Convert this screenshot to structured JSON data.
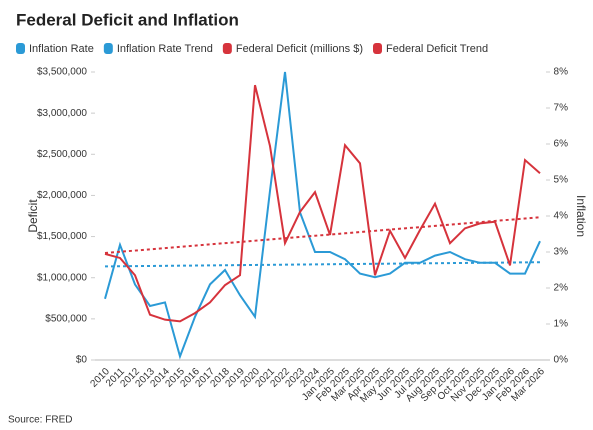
{
  "chart_data": {
    "type": "line",
    "title": "Federal Deficit and Inflation",
    "source": "Source: FRED",
    "ylabel": "Deficit",
    "y2label": "Inflation",
    "categories": [
      "2010",
      "2011",
      "2012",
      "2013",
      "2014",
      "2015",
      "2016",
      "2017",
      "2018",
      "2019",
      "2020",
      "2021",
      "2022",
      "2023",
      "2024",
      "Jan 2025",
      "Feb 2025",
      "Mar 2025",
      "Apr 2025",
      "May 2025",
      "Jun 2025",
      "Jul 2025",
      "Aug 2025",
      "Sep 2025",
      "Oct 2025",
      "Nov 2025",
      "Dec 2025",
      "Jan 2026",
      "Feb 2026",
      "Mar 2026"
    ],
    "series": [
      {
        "name": "Inflation Rate",
        "color": "#2b9ad6",
        "axis": "y2",
        "dashed": false,
        "values": [
          1.7,
          3.2,
          2.1,
          1.5,
          1.6,
          0.1,
          1.2,
          2.1,
          2.5,
          1.8,
          1.2,
          4.7,
          8.0,
          4.1,
          3.0,
          3.0,
          2.8,
          2.4,
          2.3,
          2.4,
          2.7,
          2.7,
          2.9,
          3.0,
          2.8,
          2.7,
          2.7,
          2.4,
          2.4,
          3.3
        ]
      },
      {
        "name": "Inflation Rate Trend",
        "color": "#2b9ad6",
        "axis": "y2",
        "dashed": true,
        "values": [
          2.6,
          2.604,
          2.608,
          2.612,
          2.616,
          2.62,
          2.624,
          2.628,
          2.632,
          2.636,
          2.64,
          2.644,
          2.648,
          2.652,
          2.656,
          2.66,
          2.664,
          2.668,
          2.672,
          2.676,
          2.68,
          2.684,
          2.688,
          2.692,
          2.696,
          2.7,
          2.704,
          2.708,
          2.712,
          2.716
        ]
      },
      {
        "name": "Federal Deficit (millions $)",
        "color": "#d6333c",
        "axis": "y",
        "dashed": false,
        "values": [
          1290000,
          1240000,
          1030000,
          550000,
          490000,
          470000,
          570000,
          700000,
          910000,
          1030000,
          3340000,
          2600000,
          1420000,
          1800000,
          2040000,
          1520000,
          2610000,
          2390000,
          1030000,
          1570000,
          1240000,
          1580000,
          1900000,
          1420000,
          1600000,
          1660000,
          1680000,
          1150000,
          2430000,
          2270000
        ]
      },
      {
        "name": "Federal Deficit Trend",
        "color": "#d6333c",
        "axis": "y",
        "dashed": true,
        "values": [
          1300000,
          1315000,
          1330000,
          1345000,
          1360000,
          1375000,
          1390000,
          1405000,
          1420000,
          1435000,
          1450000,
          1465000,
          1480000,
          1495000,
          1510000,
          1525000,
          1540000,
          1555000,
          1570000,
          1585000,
          1600000,
          1615000,
          1630000,
          1645000,
          1660000,
          1675000,
          1690000,
          1705000,
          1720000,
          1735000
        ]
      }
    ],
    "ylim": [
      0,
      3500000
    ],
    "yticks": [
      {
        "value": 0,
        "label": "$0"
      },
      {
        "value": 500000,
        "label": "$500,000"
      },
      {
        "value": 1000000,
        "label": "$1,000,000"
      },
      {
        "value": 1500000,
        "label": "$1,500,000"
      },
      {
        "value": 2000000,
        "label": "$2,000,000"
      },
      {
        "value": 2500000,
        "label": "$2,500,000"
      },
      {
        "value": 3000000,
        "label": "$3,000,000"
      },
      {
        "value": 3500000,
        "label": "$3,500,000"
      }
    ],
    "y2lim": [
      0,
      8
    ],
    "y2ticks": [
      {
        "value": 0,
        "label": "0%"
      },
      {
        "value": 1,
        "label": "1%"
      },
      {
        "value": 2,
        "label": "2%"
      },
      {
        "value": 3,
        "label": "3%"
      },
      {
        "value": 4,
        "label": "4%"
      },
      {
        "value": 5,
        "label": "5%"
      },
      {
        "value": 6,
        "label": "6%"
      },
      {
        "value": 7,
        "label": "7%"
      },
      {
        "value": 8,
        "label": "8%"
      }
    ],
    "grid": false
  }
}
